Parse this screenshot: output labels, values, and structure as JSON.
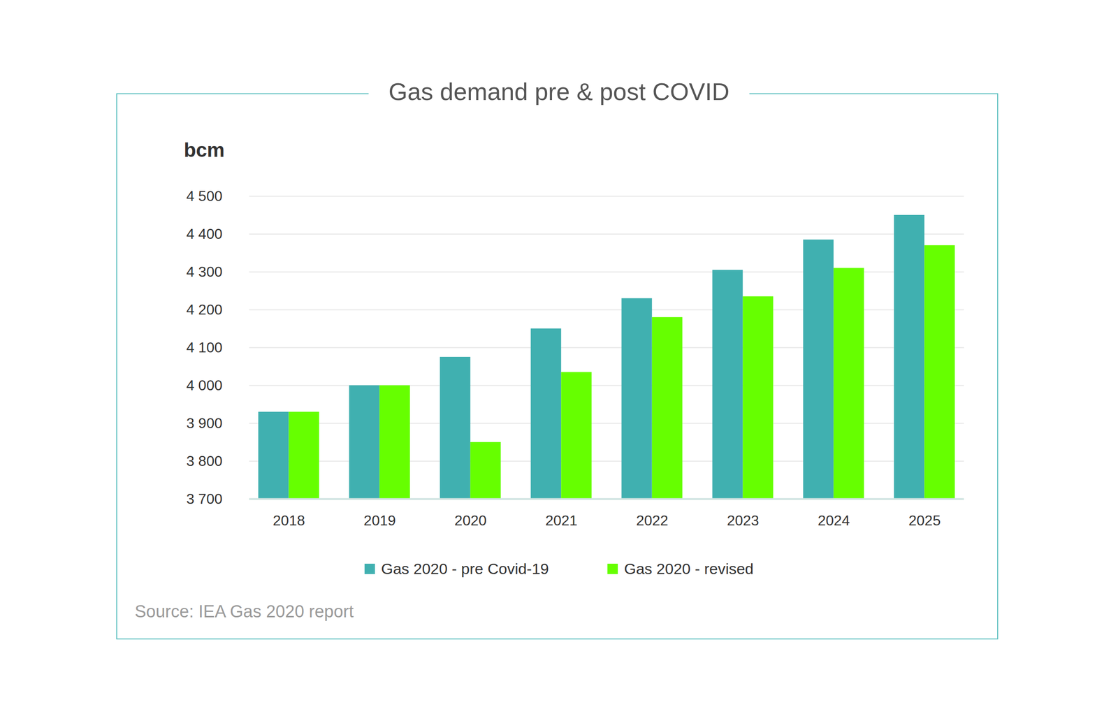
{
  "chart_data": {
    "type": "bar",
    "title": "Gas demand pre & post COVID",
    "ylabel": "bcm",
    "categories": [
      "2018",
      "2019",
      "2020",
      "2021",
      "2022",
      "2023",
      "2024",
      "2025"
    ],
    "series": [
      {
        "name": "Gas 2020 - pre Covid-19",
        "color": "#40b0b0",
        "values": [
          3930,
          4000,
          4075,
          4150,
          4230,
          4305,
          4385,
          4450
        ]
      },
      {
        "name": "Gas 2020 - revised",
        "color": "#66ff00",
        "values": [
          3930,
          4000,
          3850,
          4035,
          4180,
          4235,
          4310,
          4370
        ]
      }
    ],
    "ylim": [
      3700,
      4500
    ],
    "yticks": [
      {
        "value": 3700,
        "label": "3 700"
      },
      {
        "value": 3800,
        "label": "3 800"
      },
      {
        "value": 3900,
        "label": "3 900"
      },
      {
        "value": 4000,
        "label": "4 000"
      },
      {
        "value": 4100,
        "label": "4 100"
      },
      {
        "value": 4200,
        "label": "4 200"
      },
      {
        "value": 4300,
        "label": "4 300"
      },
      {
        "value": 4400,
        "label": "4 400"
      },
      {
        "value": 4500,
        "label": "4 500"
      }
    ],
    "grid": true,
    "legend": "bottom",
    "source": "Source: IEA Gas 2020 report"
  }
}
